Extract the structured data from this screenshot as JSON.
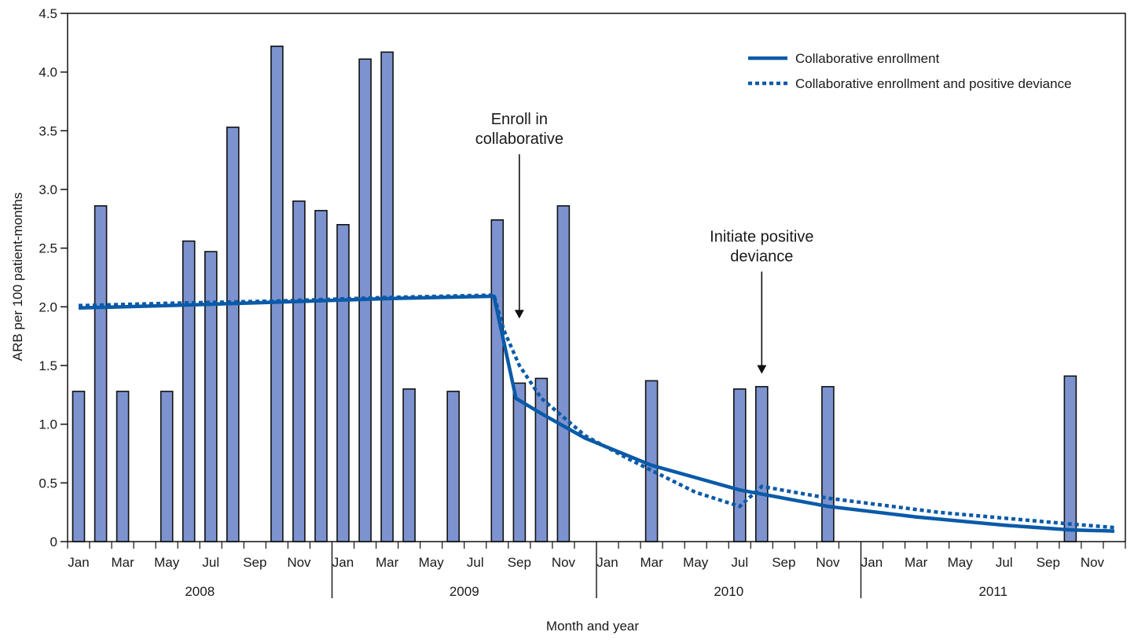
{
  "chart_data": {
    "type": "bar",
    "title": "",
    "xlabel": "Month and year",
    "ylabel": "ARB per 100 patient-months",
    "ylim": [
      0,
      4.5
    ],
    "yticks": [
      "0",
      "0.5",
      "1.0",
      "1.5",
      "2.0",
      "2.5",
      "3.0",
      "3.5",
      "4.0",
      "4.5"
    ],
    "grid": false,
    "legend_position": "top-right",
    "colors": {
      "bar_fill": "#7c93cf",
      "bar_stroke": "#111111",
      "line": "#0a5aa8",
      "axis": "#111111",
      "arrow": "#111111"
    },
    "years": [
      "2008",
      "2009",
      "2010",
      "2011"
    ],
    "month_tick_labels": [
      "Jan",
      "",
      "Mar",
      "",
      "May",
      "",
      "Jul",
      "",
      "Sep",
      "",
      "Nov",
      "",
      "Jan",
      "",
      "Mar",
      "",
      "May",
      "",
      "Jul",
      "",
      "Sep",
      "",
      "Nov",
      "",
      "Jan",
      "",
      "Mar",
      "",
      "May",
      "",
      "Jul",
      "",
      "Sep",
      "",
      "Nov",
      "",
      "Jan",
      "",
      "Mar",
      "",
      "May",
      "",
      "Jul",
      "",
      "Sep",
      "",
      "Nov",
      ""
    ],
    "bars": [
      1.28,
      2.86,
      1.28,
      0,
      1.28,
      2.56,
      2.47,
      3.53,
      0,
      4.22,
      2.9,
      2.82,
      2.7,
      4.11,
      4.17,
      1.3,
      0,
      1.28,
      0,
      2.74,
      1.35,
      1.39,
      2.86,
      0,
      0,
      0,
      1.37,
      0,
      0,
      0,
      1.3,
      1.32,
      0,
      0,
      1.32,
      0,
      0,
      0,
      0,
      0,
      0,
      0,
      0,
      0,
      0,
      1.41,
      0,
      0
    ],
    "series": [
      {
        "name": "Collaborative enrollment",
        "style": "solid",
        "points": [
          [
            1,
            1.99
          ],
          [
            5,
            2.01
          ],
          [
            10,
            2.04
          ],
          [
            15,
            2.07
          ],
          [
            19.85,
            2.09
          ],
          [
            20.85,
            1.22
          ],
          [
            22,
            1.09
          ],
          [
            24,
            0.88
          ],
          [
            27,
            0.65
          ],
          [
            31,
            0.44
          ],
          [
            35,
            0.3
          ],
          [
            39,
            0.21
          ],
          [
            43,
            0.14
          ],
          [
            46,
            0.1
          ],
          [
            48,
            0.09
          ]
        ]
      },
      {
        "name": "Collaborative enrollment and positive deviance",
        "style": "dotted",
        "points": [
          [
            1,
            2.01
          ],
          [
            5,
            2.03
          ],
          [
            10,
            2.05
          ],
          [
            15,
            2.08
          ],
          [
            19.85,
            2.1
          ],
          [
            20.3,
            1.8
          ],
          [
            21,
            1.5
          ],
          [
            22,
            1.22
          ],
          [
            24,
            0.9
          ],
          [
            26,
            0.7
          ],
          [
            29,
            0.42
          ],
          [
            31,
            0.3
          ],
          [
            32,
            0.47
          ],
          [
            35,
            0.37
          ],
          [
            40,
            0.25
          ],
          [
            46,
            0.15
          ],
          [
            48,
            0.12
          ]
        ]
      }
    ],
    "annotations": [
      {
        "lines": [
          "Enroll in",
          "collaborative"
        ],
        "x": 21,
        "y_top": 3.3,
        "y_bottom": 1.9
      },
      {
        "lines": [
          "Initiate positive",
          "deviance"
        ],
        "x": 32,
        "y_top": 2.3,
        "y_bottom": 1.43
      }
    ]
  }
}
